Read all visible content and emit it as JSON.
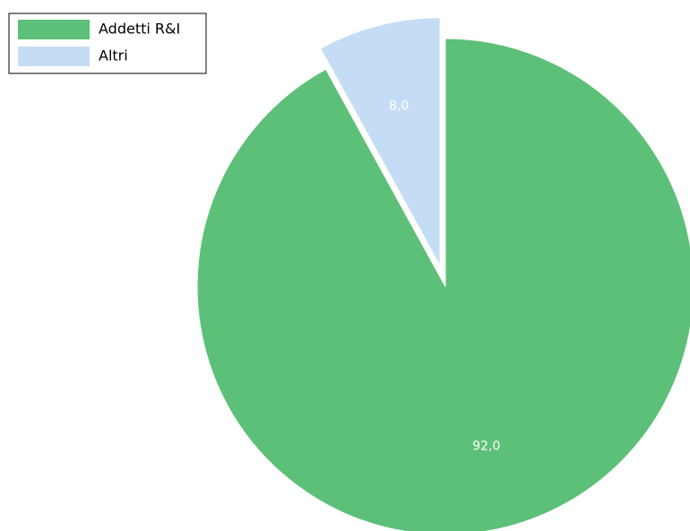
{
  "chart_data": {
    "type": "pie",
    "categories": [
      "Addetti R&I",
      "Altri"
    ],
    "values": [
      92,
      8
    ],
    "value_labels": [
      "92,0",
      "8,0"
    ],
    "colors": [
      "#5dc078",
      "#c5ddf4"
    ],
    "explode": [
      false,
      true
    ],
    "legend": "upper left"
  }
}
